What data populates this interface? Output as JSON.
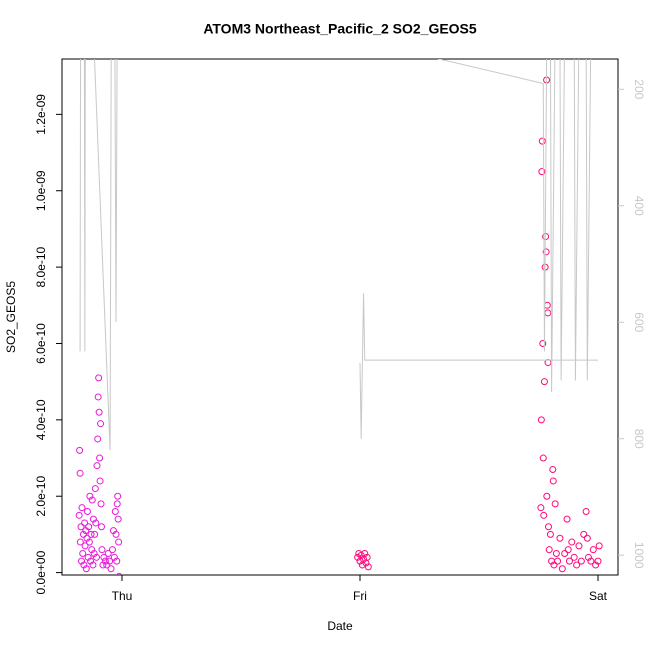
{
  "chart_data": {
    "type": "scatter",
    "title": "ATOM3 Northeast_Pacific_2 SO2_GEOS5",
    "xlabel": "Date",
    "ylabel": "SO2_GEOS5",
    "xlim": [
      -0.252,
      2.084
    ],
    "xticks": [
      {
        "value": 0,
        "label": "Thu"
      },
      {
        "value": 1,
        "label": "Fri"
      },
      {
        "value": 2,
        "label": "Sat"
      }
    ],
    "ylim": [
      -6.3e-12,
      1.345e-09
    ],
    "yticks": [
      {
        "value": 0,
        "label": "0.0e+00"
      },
      {
        "value": 2e-10,
        "label": "2.0e-10"
      },
      {
        "value": 4e-10,
        "label": "4.0e-10"
      },
      {
        "value": 6e-10,
        "label": "6.0e-10"
      },
      {
        "value": 8e-10,
        "label": "8.0e-10"
      },
      {
        "value": 1e-09,
        "label": "1.0e-09"
      },
      {
        "value": 1.2e-09,
        "label": "1.2e-09"
      }
    ],
    "y2lim": [
      1034,
      148
    ],
    "y2ticks": [
      200,
      400,
      600,
      800,
      1000
    ],
    "y2color": "#c8c8c8",
    "series": [
      {
        "color": "#e81ad8",
        "x": [
          -0.18,
          -0.178,
          -0.176,
          -0.175,
          -0.172,
          -0.17,
          -0.168,
          -0.165,
          -0.162,
          -0.16,
          -0.157,
          -0.155,
          -0.152,
          -0.15,
          -0.147,
          -0.145,
          -0.142,
          -0.14,
          -0.137,
          -0.135,
          -0.132,
          -0.13,
          -0.127,
          -0.125,
          -0.122,
          -0.12,
          -0.117,
          -0.115,
          -0.112,
          -0.11,
          -0.107,
          -0.105,
          -0.102,
          -0.1,
          -0.098,
          -0.096,
          -0.094,
          -0.092,
          -0.09,
          -0.088,
          -0.086,
          -0.084,
          -0.08,
          -0.076,
          -0.07,
          -0.064,
          -0.058,
          -0.052,
          -0.046,
          -0.04,
          -0.036,
          -0.032,
          -0.028,
          -0.025,
          -0.022,
          -0.02,
          -0.018,
          -0.016,
          -0.014,
          -0.012
        ],
        "values": [
          1.5e-10,
          3.2e-10,
          2.6e-10,
          8e-11,
          1.2e-10,
          3e-11,
          1.7e-10,
          5e-11,
          1e-10,
          2e-11,
          1.3e-10,
          7e-11,
          1.1e-10,
          1e-11,
          9e-11,
          1.6e-10,
          4e-11,
          1.2e-10,
          8e-11,
          2e-10,
          3e-11,
          1e-10,
          6e-11,
          1.9e-10,
          2e-11,
          1.4e-10,
          5e-11,
          1e-10,
          2.2e-10,
          1.3e-10,
          4e-11,
          2.8e-10,
          3.5e-10,
          4.6e-10,
          5.1e-10,
          4.2e-10,
          3e-10,
          2.4e-10,
          3.9e-10,
          1.8e-10,
          1.2e-10,
          6e-11,
          2e-11,
          4e-11,
          3e-11,
          2e-11,
          5e-11,
          3e-11,
          1e-11,
          6e-11,
          1.1e-10,
          4e-11,
          1.6e-10,
          1e-10,
          3e-11,
          1.8e-10,
          2e-10,
          1.4e-10,
          8e-11,
          -1e-11
        ]
      },
      {
        "color": "#ff0a78",
        "x": [
          0.99,
          0.995,
          1.0,
          1.005,
          1.01,
          1.015,
          1.02,
          1.025,
          1.03,
          1.035,
          1.76,
          1.762,
          1.764,
          1.766,
          1.768,
          1.77,
          1.772,
          1.775,
          1.778,
          1.78,
          1.782,
          1.784,
          1.785,
          1.787,
          1.789,
          1.79,
          1.792,
          1.795,
          1.8,
          1.805,
          1.81,
          1.812,
          1.815,
          1.82,
          1.825,
          1.83,
          1.84,
          1.85,
          1.86,
          1.87,
          1.875,
          1.88,
          1.89,
          1.9,
          1.91,
          1.92,
          1.93,
          1.94,
          1.95,
          1.955,
          1.96,
          1.97,
          1.98,
          1.99,
          2.0,
          2.005
        ],
        "values": [
          4e-11,
          5e-11,
          3e-11,
          4.5e-11,
          2e-11,
          3.5e-11,
          5e-11,
          2.5e-11,
          4e-11,
          1.5e-11,
          1.7e-10,
          4e-10,
          1.05e-09,
          1.13e-09,
          6e-10,
          3e-10,
          1.5e-10,
          5e-10,
          8e-10,
          8.8e-10,
          8.4e-10,
          1.29e-09,
          2e-10,
          7e-10,
          6.8e-10,
          5.5e-10,
          1.2e-10,
          6e-11,
          1e-10,
          3e-11,
          2.7e-10,
          2.4e-10,
          2e-11,
          1.8e-10,
          5e-11,
          3e-11,
          9e-11,
          1e-11,
          5e-11,
          1.4e-10,
          6e-11,
          3e-11,
          8e-11,
          4e-11,
          2e-11,
          7e-11,
          3e-11,
          1e-10,
          1.6e-10,
          9e-11,
          4e-11,
          3e-11,
          6e-11,
          2e-11,
          3e-11,
          7e-11
        ]
      },
      {
        "type": "line",
        "axis": "y2",
        "color": "#c8c8c8",
        "x": [
          -0.176,
          -0.174,
          -0.158,
          -0.156,
          -0.154,
          -0.12,
          -0.05,
          -0.045,
          -0.03,
          -0.025,
          -0.02,
          null,
          1.0,
          1.005,
          1.01,
          1.015,
          1.02,
          2.0,
          null,
          1.25,
          1.77,
          1.775,
          1.785,
          1.8,
          1.805,
          1.82,
          1.84,
          1.845,
          1.86,
          1.9,
          1.905,
          1.92,
          1.95,
          1.955,
          1.97
        ],
        "values": [
          650,
          100,
          100,
          650,
          100,
          100,
          820,
          100,
          100,
          600,
          100,
          null,
          670,
          800,
          670,
          550,
          665,
          665,
          null,
          140,
          190,
          650,
          100,
          100,
          720,
          100,
          100,
          700,
          100,
          100,
          700,
          100,
          100,
          700,
          100
        ]
      }
    ]
  }
}
